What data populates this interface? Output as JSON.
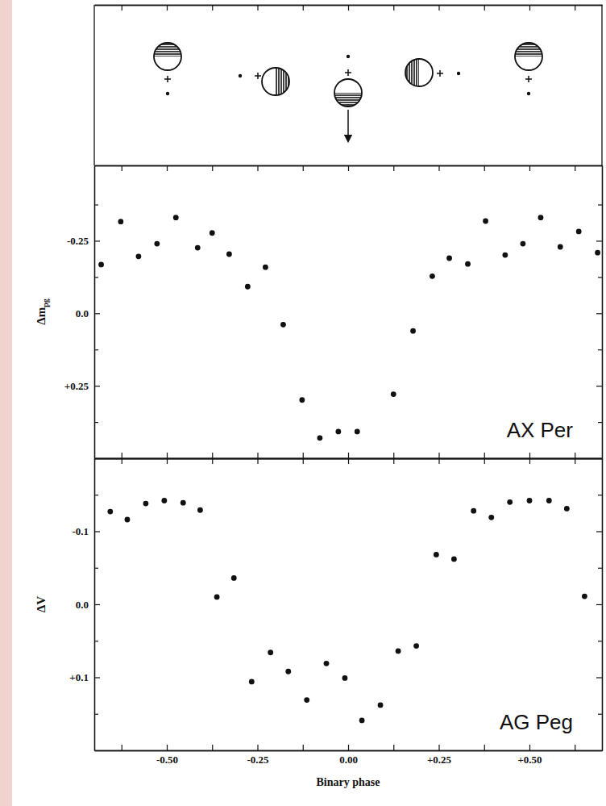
{
  "chart_data": [
    {
      "type": "scatter",
      "annotation": "AX Per",
      "ylabel": "Δm",
      "ylabel_sub": "pg",
      "color": "#111111",
      "marker": "circle",
      "tick_labels": "y",
      "x": [
        -0.681,
        -0.627,
        -0.578,
        -0.527,
        -0.475,
        -0.415,
        -0.375,
        -0.328,
        -0.277,
        -0.228,
        -0.179,
        -0.127,
        -0.078,
        -0.027,
        0.025,
        0.125,
        0.179,
        0.232,
        0.279,
        0.33,
        0.379,
        0.433,
        0.482,
        0.531,
        0.585,
        0.636,
        0.688
      ],
      "values": [
        -0.168,
        -0.316,
        -0.196,
        -0.24,
        -0.33,
        -0.226,
        -0.277,
        -0.204,
        -0.092,
        -0.159,
        0.039,
        0.299,
        0.43,
        0.408,
        0.408,
        0.279,
        0.061,
        -0.128,
        -0.19,
        -0.17,
        -0.318,
        -0.201,
        -0.24,
        -0.33,
        -0.229,
        -0.282,
        -0.209
      ],
      "xlim": [
        -0.7,
        0.7
      ],
      "xticks": [
        -0.5,
        -0.25,
        0,
        0.25,
        0.5
      ],
      "xticks_minor": [
        -0.625,
        -0.375,
        -0.125,
        0.125,
        0.375,
        0.625
      ],
      "ylim": [
        0.5,
        -0.51
      ],
      "yticks": [
        -0.25,
        {
          "value": 0,
          "label": "0.0"
        },
        {
          "value": 0.25,
          "label": "+0.25"
        }
      ],
      "yticks_minor": [
        -0.375,
        -0.125,
        0.125,
        0.375
      ]
    },
    {
      "type": "scatter",
      "annotation": "AG Peg",
      "ylabel": "ΔV",
      "xlabel": "Binary phase",
      "color": "#111111",
      "marker": "circle",
      "x": [
        -0.656,
        -0.609,
        -0.558,
        -0.507,
        -0.455,
        -0.408,
        -0.362,
        -0.315,
        -0.266,
        -0.214,
        -0.165,
        -0.114,
        -0.06,
        -0.009,
        0.038,
        0.089,
        0.138,
        0.188,
        0.243,
        0.292,
        0.346,
        0.395,
        0.446,
        0.5,
        0.554,
        0.603,
        0.652
      ],
      "values": [
        -0.127,
        -0.116,
        -0.138,
        -0.142,
        -0.139,
        -0.129,
        -0.01,
        -0.036,
        0.106,
        0.066,
        0.092,
        0.131,
        0.081,
        0.101,
        0.159,
        0.138,
        0.064,
        0.057,
        -0.068,
        -0.062,
        -0.128,
        -0.119,
        -0.14,
        -0.142,
        -0.142,
        -0.131,
        -0.011
      ],
      "xlim": [
        -0.7,
        0.7
      ],
      "xticks": [
        {
          "value": -0.5,
          "label": "-0.50"
        },
        {
          "value": -0.25,
          "label": "-0.25"
        },
        {
          "value": 0,
          "label": "0.00"
        },
        {
          "value": 0.25,
          "label": "+0.25"
        },
        {
          "value": 0.5,
          "label": "+0.50"
        }
      ],
      "xticks_minor": [
        -0.625,
        -0.375,
        -0.125,
        0.125,
        0.375,
        0.625
      ],
      "ylim": [
        0.2,
        -0.2
      ],
      "yticks": [
        -0.1,
        {
          "value": 0,
          "label": "0.0"
        },
        {
          "value": 0.1,
          "label": "+0.1"
        }
      ],
      "yticks_minor": [
        -0.15,
        -0.05,
        0.05,
        0.15
      ]
    }
  ]
}
